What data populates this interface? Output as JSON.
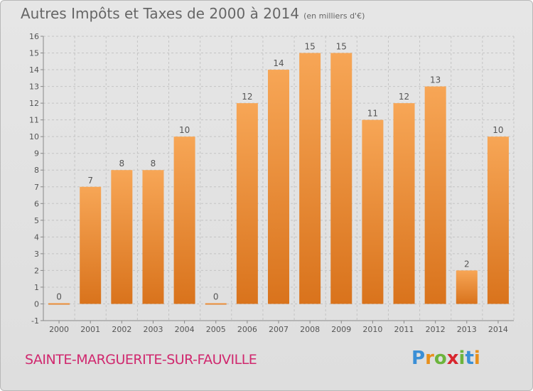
{
  "header": {
    "title": "Autres Impôts et Taxes de 2000 à 2014",
    "subtitle": "(en milliers d'€)"
  },
  "footer": {
    "commune": "SAINTE-MARGUERITE-SUR-FAUVILLE",
    "logo_letters": [
      "P",
      "r",
      "o",
      "x",
      "i",
      "t",
      "i"
    ],
    "logo_colors": [
      "#3a8fd6",
      "#e8901c",
      "#6cb43c",
      "#d8262e",
      "#6cb43c",
      "#3a8fd6",
      "#e8901c"
    ]
  },
  "chart_data": {
    "type": "bar",
    "categories": [
      "2000",
      "2001",
      "2002",
      "2003",
      "2004",
      "2005",
      "2006",
      "2007",
      "2008",
      "2009",
      "2010",
      "2011",
      "2012",
      "2013",
      "2014"
    ],
    "values": [
      0,
      7,
      8,
      8,
      10,
      0,
      12,
      14,
      15,
      15,
      11,
      12,
      13,
      2,
      10
    ],
    "data_labels": [
      "0",
      "7",
      "8",
      "8",
      "10",
      "0",
      "12",
      "14",
      "15",
      "15",
      "11",
      "12",
      "13",
      "2",
      "10"
    ],
    "yticks": [
      "-1",
      "0",
      "1",
      "2",
      "3",
      "4",
      "5",
      "6",
      "7",
      "8",
      "9",
      "10",
      "11",
      "12",
      "13",
      "14",
      "15",
      "16"
    ],
    "ylim": [
      -1,
      16
    ],
    "grid": true,
    "bar_color_light": "#f7a656",
    "bar_color_dark": "#d9731c"
  }
}
